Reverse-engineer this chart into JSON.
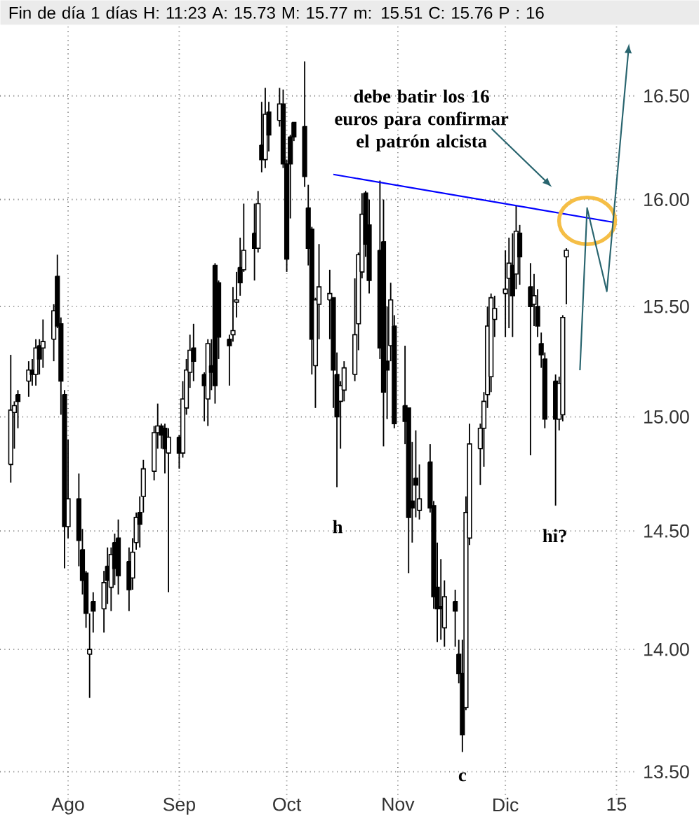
{
  "chart_data": {
    "type": "candlestick",
    "title": "Fin de día 1 días H: 11:23 A: 15.73 M: 15.77 m: 15.51 C: 15.76 P : 16",
    "x": [
      "2014-07-16",
      "2014-07-17",
      "2014-07-18",
      "2014-07-21",
      "2014-07-22",
      "2014-07-23",
      "2014-07-24",
      "2014-07-25",
      "2014-07-28",
      "2014-07-29",
      "2014-07-30",
      "2014-07-31",
      "2014-08-01",
      "2014-08-04",
      "2014-08-05",
      "2014-08-06",
      "2014-08-07",
      "2014-08-08",
      "2014-08-11",
      "2014-08-12",
      "2014-08-13",
      "2014-08-14",
      "2014-08-15",
      "2014-08-18",
      "2014-08-19",
      "2014-08-20",
      "2014-08-21",
      "2014-08-22",
      "2014-08-25",
      "2014-08-26",
      "2014-08-27",
      "2014-08-28",
      "2014-08-29",
      "2014-09-01",
      "2014-09-02",
      "2014-09-03",
      "2014-09-04",
      "2014-09-05",
      "2014-09-08",
      "2014-09-09",
      "2014-09-10",
      "2014-09-11",
      "2014-09-12",
      "2014-09-15",
      "2014-09-16",
      "2014-09-17",
      "2014-09-18",
      "2014-09-19",
      "2014-09-22",
      "2014-09-23",
      "2014-09-24",
      "2014-09-25",
      "2014-09-26",
      "2014-09-29",
      "2014-09-30",
      "2014-10-01",
      "2014-10-02",
      "2014-10-03",
      "2014-10-06",
      "2014-10-07",
      "2014-10-08",
      "2014-10-09",
      "2014-10-10",
      "2014-10-13",
      "2014-10-14",
      "2014-10-15",
      "2014-10-16",
      "2014-10-17",
      "2014-10-20",
      "2014-10-21",
      "2014-10-22",
      "2014-10-23",
      "2014-10-24",
      "2014-10-27",
      "2014-10-28",
      "2014-10-29",
      "2014-10-30",
      "2014-10-31",
      "2014-11-03",
      "2014-11-04",
      "2014-11-05",
      "2014-11-06",
      "2014-11-07",
      "2014-11-10",
      "2014-11-11",
      "2014-11-12",
      "2014-11-13",
      "2014-11-14",
      "2014-11-17",
      "2014-11-18",
      "2014-11-19",
      "2014-11-20",
      "2014-11-21",
      "2014-11-24",
      "2014-11-25",
      "2014-11-26",
      "2014-11-27",
      "2014-11-28",
      "2014-12-01",
      "2014-12-02",
      "2014-12-03",
      "2014-12-04",
      "2014-12-05",
      "2014-12-08",
      "2014-12-09",
      "2014-12-10",
      "2014-12-11",
      "2014-12-12",
      "2014-12-15",
      "2014-12-16",
      "2014-12-17",
      "2014-12-18"
    ],
    "ohlc": [
      [
        14.79,
        15.28,
        14.71,
        15.03
      ],
      [
        15.02,
        15.07,
        14.86,
        15.05
      ],
      [
        15.1,
        15.12,
        14.95,
        15.07
      ],
      [
        15.16,
        15.25,
        15.09,
        15.21
      ],
      [
        15.21,
        15.26,
        15.14,
        15.19
      ],
      [
        15.19,
        15.35,
        15.14,
        15.31
      ],
      [
        15.32,
        15.35,
        15.19,
        15.26
      ],
      [
        15.31,
        15.44,
        15.22,
        15.34
      ],
      [
        15.35,
        15.51,
        15.25,
        15.48
      ],
      [
        15.64,
        15.74,
        15.4,
        15.41
      ],
      [
        15.42,
        15.45,
        15.01,
        15.16
      ],
      [
        15.1,
        15.12,
        14.34,
        14.52
      ],
      [
        14.52,
        14.9,
        14.47,
        14.64
      ],
      [
        14.64,
        14.75,
        14.35,
        14.46
      ],
      [
        14.42,
        14.51,
        14.23,
        14.29
      ],
      [
        14.32,
        14.33,
        14.09,
        14.15
      ],
      [
        13.98,
        14.15,
        13.8,
        14.0
      ],
      [
        14.2,
        14.24,
        14.07,
        14.16
      ],
      [
        14.17,
        14.33,
        14.07,
        14.28
      ],
      [
        14.35,
        14.43,
        14.19,
        14.29
      ],
      [
        14.26,
        14.43,
        14.16,
        14.4
      ],
      [
        14.45,
        14.49,
        14.27,
        14.34
      ],
      [
        14.47,
        14.55,
        14.23,
        14.31
      ],
      [
        14.37,
        14.43,
        14.16,
        14.25
      ],
      [
        14.3,
        14.47,
        14.25,
        14.41
      ],
      [
        14.45,
        14.58,
        14.42,
        14.56
      ],
      [
        14.58,
        14.65,
        14.43,
        14.53
      ],
      [
        14.65,
        14.81,
        14.58,
        14.77
      ],
      [
        14.76,
        14.96,
        14.72,
        14.93
      ],
      [
        14.93,
        15.06,
        14.86,
        14.96
      ],
      [
        14.96,
        14.97,
        14.86,
        14.92
      ],
      [
        14.95,
        14.97,
        14.75,
        14.86
      ],
      [
        14.84,
        14.95,
        14.24,
        14.91
      ],
      [
        14.91,
        14.92,
        14.77,
        14.84
      ],
      [
        14.84,
        15.16,
        14.82,
        15.08
      ],
      [
        15.04,
        15.26,
        15.01,
        15.21
      ],
      [
        15.2,
        15.37,
        15.13,
        15.3
      ],
      [
        15.31,
        15.42,
        15.16,
        15.25
      ],
      [
        15.19,
        15.2,
        14.98,
        15.14
      ],
      [
        15.08,
        15.35,
        14.96,
        15.33
      ],
      [
        15.23,
        15.35,
        15.12,
        15.2
      ],
      [
        15.69,
        15.7,
        15.06,
        15.14
      ],
      [
        15.61,
        15.62,
        15.26,
        15.36
      ],
      [
        15.35,
        15.37,
        15.14,
        15.32
      ],
      [
        15.37,
        15.59,
        15.34,
        15.39
      ],
      [
        15.52,
        15.66,
        15.45,
        15.53
      ],
      [
        15.68,
        15.82,
        15.55,
        15.61
      ],
      [
        15.67,
        15.98,
        15.66,
        15.76
      ],
      [
        15.84,
        15.98,
        15.62,
        15.77
      ],
      [
        15.77,
        16.04,
        15.75,
        15.98
      ],
      [
        16.26,
        16.47,
        16.13,
        16.19
      ],
      [
        16.19,
        16.54,
        16.15,
        16.41
      ],
      [
        16.42,
        16.47,
        16.23,
        16.31
      ],
      [
        16.38,
        16.54,
        16.35,
        16.46
      ],
      [
        16.46,
        16.53,
        16.15,
        16.17
      ],
      [
        16.17,
        16.19,
        15.66,
        15.72
      ],
      [
        16.3,
        16.31,
        15.91,
        16.17
      ],
      [
        16.37,
        16.37,
        16.28,
        16.3
      ],
      [
        16.35,
        16.67,
        16.06,
        16.11
      ],
      [
        15.96,
        16.07,
        15.69,
        15.77
      ],
      [
        15.86,
        15.87,
        15.19,
        15.35
      ],
      [
        15.23,
        15.54,
        15.04,
        15.53
      ],
      [
        15.51,
        15.79,
        15.35,
        15.59
      ],
      [
        15.53,
        15.67,
        15.35,
        15.56
      ],
      [
        15.54,
        15.54,
        15.04,
        15.21
      ],
      [
        15.19,
        15.29,
        14.69,
        15.0
      ],
      [
        15.07,
        15.16,
        14.86,
        15.14
      ],
      [
        15.12,
        15.25,
        15.07,
        15.22
      ],
      [
        15.19,
        15.63,
        15.16,
        15.37
      ],
      [
        15.42,
        15.75,
        15.3,
        15.74
      ],
      [
        15.66,
        16.03,
        15.63,
        15.93
      ],
      [
        16.03,
        16.04,
        15.73,
        15.79
      ],
      [
        15.88,
        16.0,
        15.56,
        15.62
      ],
      [
        15.76,
        16.09,
        15.26,
        15.31
      ],
      [
        15.8,
        16.0,
        14.87,
        15.11
      ],
      [
        15.25,
        15.5,
        14.99,
        15.21
      ],
      [
        15.32,
        15.61,
        15.25,
        15.53
      ],
      [
        15.41,
        15.46,
        14.95,
        14.97
      ],
      [
        15.05,
        15.32,
        14.88,
        14.98
      ],
      [
        15.04,
        15.04,
        14.32,
        14.56
      ],
      [
        14.63,
        14.89,
        14.45,
        14.6
      ],
      [
        14.73,
        14.94,
        14.56,
        14.7
      ],
      [
        14.59,
        14.79,
        14.55,
        14.64
      ],
      [
        14.8,
        14.88,
        14.58,
        14.6
      ],
      [
        14.61,
        14.63,
        14.17,
        14.22
      ],
      [
        14.26,
        14.45,
        14.03,
        14.17
      ],
      [
        14.18,
        14.38,
        14.04,
        14.17
      ],
      [
        14.09,
        14.29,
        14.01,
        14.22
      ],
      [
        14.2,
        14.25,
        14.01,
        14.16
      ],
      [
        13.98,
        14.04,
        13.86,
        13.9
      ],
      [
        13.9,
        14.04,
        13.58,
        13.65
      ],
      [
        13.76,
        14.65,
        13.75,
        14.58
      ],
      [
        14.47,
        14.97,
        14.44,
        14.88
      ],
      [
        14.86,
        14.97,
        14.7,
        14.95
      ],
      [
        14.95,
        15.11,
        14.78,
        15.07
      ],
      [
        15.1,
        15.5,
        15.04,
        15.41
      ],
      [
        15.18,
        15.56,
        15.11,
        15.54
      ],
      [
        15.44,
        15.55,
        15.36,
        15.49
      ],
      [
        15.56,
        15.76,
        15.36,
        15.58
      ],
      [
        15.63,
        15.82,
        15.4,
        15.7
      ],
      [
        15.69,
        15.84,
        15.36,
        15.55
      ],
      [
        15.65,
        15.97,
        15.58,
        15.85
      ],
      [
        15.84,
        15.88,
        15.6,
        15.73
      ],
      [
        15.59,
        15.7,
        14.83,
        15.5
      ],
      [
        15.51,
        15.65,
        15.41,
        15.55
      ],
      [
        15.5,
        15.58,
        15.36,
        15.41
      ],
      [
        15.33,
        15.38,
        15.22,
        15.28
      ],
      [
        15.26,
        15.29,
        14.95,
        14.99
      ],
      [
        15.16,
        15.19,
        14.61,
        14.99
      ],
      [
        14.99,
        15.18,
        14.94,
        15.15
      ],
      [
        15.01,
        15.46,
        14.98,
        15.45
      ],
      [
        15.73,
        15.77,
        15.51,
        15.76
      ]
    ],
    "series": [
      {
        "type": "line",
        "color": "#0000ff",
        "x": [
          "2014-10-14",
          "2015-01-01"
        ],
        "values": [
          16.12,
          15.89
        ]
      }
    ],
    "xlim": [
      "2014-07-13",
      "2015-01-06"
    ],
    "ylim": [
      13.39,
      16.85
    ],
    "xticks": [
      {
        "value": "2014-08-01",
        "label": "Ago"
      },
      {
        "value": "2014-09-01",
        "label": "Sep"
      },
      {
        "value": "2014-10-01",
        "label": "Oct"
      },
      {
        "value": "2014-11-01",
        "label": "Nov"
      },
      {
        "value": "2014-12-01",
        "label": "Dic"
      },
      {
        "value": "2015-01-01",
        "label": "15"
      }
    ],
    "yticks": [
      {
        "value": 13.5,
        "label": "13.50"
      },
      {
        "value": 14,
        "label": "14.00"
      },
      {
        "value": 14.5,
        "label": "14.50"
      },
      {
        "value": 15,
        "label": "15.00"
      },
      {
        "value": 15.5,
        "label": "15.50"
      },
      {
        "value": 16,
        "label": "16.00"
      },
      {
        "value": 16.5,
        "label": "16.50"
      }
    ],
    "log": "y",
    "grid": true,
    "marker": "none",
    "line_style": "solid",
    "annotations": [
      "debe batir los 16 euros para confirmar el patrón alcista",
      "h",
      "c",
      "hi?"
    ]
  }
}
